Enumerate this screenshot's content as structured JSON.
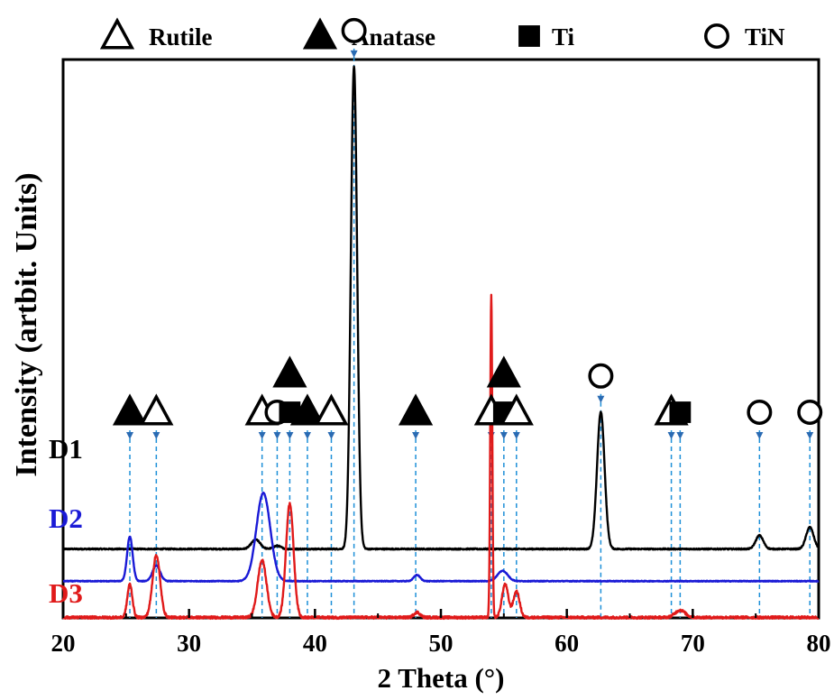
{
  "chart_data": {
    "type": "line",
    "title": "",
    "xlabel": "2 Theta (°)",
    "ylabel": "Intensity (artbit. Units)",
    "xlim": [
      20,
      80
    ],
    "x_ticks": [
      20,
      30,
      40,
      50,
      60,
      70,
      80
    ],
    "grid": false,
    "legend": {
      "position": "top",
      "entries": [
        {
          "marker": "triangle-open",
          "label": "Rutile"
        },
        {
          "marker": "triangle-filled",
          "label": "Anatase"
        },
        {
          "marker": "square-filled",
          "label": "Ti"
        },
        {
          "marker": "circle-open",
          "label": "TiN"
        }
      ]
    },
    "series": [
      {
        "name": "D1",
        "color": "#000000",
        "baseline": 0.36,
        "noise": 0.006,
        "peaks": [
          {
            "x": 35.3,
            "h": 0.09,
            "w": 0.35
          },
          {
            "x": 37.0,
            "h": 0.03,
            "w": 0.3
          },
          {
            "x": 43.1,
            "h": 4.65,
            "w": 0.25
          },
          {
            "x": 62.7,
            "h": 1.32,
            "w": 0.3
          },
          {
            "x": 75.3,
            "h": 0.13,
            "w": 0.3
          },
          {
            "x": 79.3,
            "h": 0.21,
            "w": 0.3
          }
        ]
      },
      {
        "name": "D2",
        "color": "#1a1ad6",
        "baseline": 0.05,
        "noise": 0.004,
        "peaks": [
          {
            "x": 25.3,
            "h": 0.43,
            "w": 0.22
          },
          {
            "x": 27.4,
            "h": 0.15,
            "w": 0.3
          },
          {
            "x": 35.9,
            "h": 0.85,
            "w": 0.55
          },
          {
            "x": 48.1,
            "h": 0.06,
            "w": 0.25
          },
          {
            "x": 54.9,
            "h": 0.1,
            "w": 0.4
          }
        ]
      },
      {
        "name": "D3",
        "color": "#e01a1a",
        "baseline": -0.3,
        "noise": 0.012,
        "peaks": [
          {
            "x": 25.3,
            "h": 0.32,
            "w": 0.2
          },
          {
            "x": 27.4,
            "h": 0.6,
            "w": 0.3
          },
          {
            "x": 35.8,
            "h": 0.55,
            "w": 0.35
          },
          {
            "x": 38.0,
            "h": 1.1,
            "w": 0.3
          },
          {
            "x": 48.1,
            "h": 0.05,
            "w": 0.25
          },
          {
            "x": 54.0,
            "h": 3.1,
            "w": 0.08
          },
          {
            "x": 55.1,
            "h": 0.32,
            "w": 0.25
          },
          {
            "x": 56.0,
            "h": 0.25,
            "w": 0.25
          },
          {
            "x": 69.0,
            "h": 0.07,
            "w": 0.4
          }
        ]
      }
    ],
    "peak_markers": [
      {
        "x": 25.3,
        "phases": [
          "triangle-filled"
        ]
      },
      {
        "x": 27.4,
        "phases": [
          "triangle-open"
        ]
      },
      {
        "x": 35.8,
        "phases": [
          "triangle-open"
        ]
      },
      {
        "x": 37.0,
        "phases": [
          "circle-open"
        ]
      },
      {
        "x": 38.0,
        "phases": [
          "triangle-filled",
          "square-filled"
        ]
      },
      {
        "x": 39.4,
        "phases": [
          "triangle-filled"
        ]
      },
      {
        "x": 41.3,
        "phases": [
          "triangle-open"
        ]
      },
      {
        "x": 43.1,
        "phases": [
          "circle-open"
        ]
      },
      {
        "x": 48.0,
        "phases": [
          "triangle-filled"
        ]
      },
      {
        "x": 54.0,
        "phases": [
          "triangle-open"
        ]
      },
      {
        "x": 55.0,
        "phases": [
          "triangle-filled",
          "square-filled"
        ]
      },
      {
        "x": 56.0,
        "phases": [
          "triangle-open"
        ]
      },
      {
        "x": 62.7,
        "phases": [
          "circle-open"
        ]
      },
      {
        "x": 68.3,
        "phases": [
          "triangle-open"
        ]
      },
      {
        "x": 69.0,
        "phases": [
          "square-filled"
        ]
      },
      {
        "x": 75.3,
        "phases": [
          "circle-open"
        ]
      },
      {
        "x": 79.3,
        "phases": [
          "circle-open"
        ]
      }
    ]
  }
}
